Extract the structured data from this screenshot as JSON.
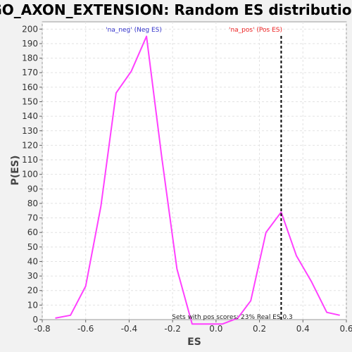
{
  "chart_data": {
    "type": "line",
    "title": "GO_AXON_EXTENSION: Random ES distribution",
    "xlabel": "ES",
    "ylabel": "P(ES)",
    "xlim": [
      -0.8,
      0.6
    ],
    "ylim": [
      0,
      205
    ],
    "x_ticks": [
      "-0.8",
      "-0.6",
      "-0.4",
      "-0.2",
      "0.0",
      "0.2",
      "0.4",
      "0.6"
    ],
    "y_ticks": [
      "0",
      "10",
      "20",
      "30",
      "40",
      "50",
      "60",
      "70",
      "80",
      "90",
      "100",
      "110",
      "120",
      "130",
      "140",
      "150",
      "160",
      "170",
      "180",
      "190",
      "200"
    ],
    "grid": true,
    "series": [
      {
        "color": "#ff40ff",
        "points": [
          [
            -0.74,
            1
          ],
          [
            -0.67,
            3
          ],
          [
            -0.6,
            23
          ],
          [
            -0.53,
            78
          ],
          [
            -0.46,
            156
          ],
          [
            -0.39,
            171
          ],
          [
            -0.32,
            195
          ],
          [
            -0.25,
            112
          ],
          [
            -0.18,
            35
          ],
          [
            -0.11,
            -3
          ],
          [
            -0.04,
            -3
          ],
          [
            0.03,
            -3
          ],
          [
            0.1,
            1
          ],
          [
            0.16,
            13
          ],
          [
            0.23,
            60
          ],
          [
            0.3,
            74
          ],
          [
            0.37,
            44
          ],
          [
            0.44,
            26
          ],
          [
            0.51,
            5
          ],
          [
            0.57,
            3
          ]
        ]
      }
    ],
    "vline": {
      "x": 0.3,
      "style": "dashed",
      "color": "#000000"
    },
    "annotations": {
      "neg_label": "'na_neg' (Neg ES)",
      "neg_color": "#3333cc",
      "pos_label": "'na_pos' (Pos ES)",
      "pos_color": "#ee2222",
      "footer": "Sets with pos scores: 23%   Real ES 0.3"
    }
  }
}
